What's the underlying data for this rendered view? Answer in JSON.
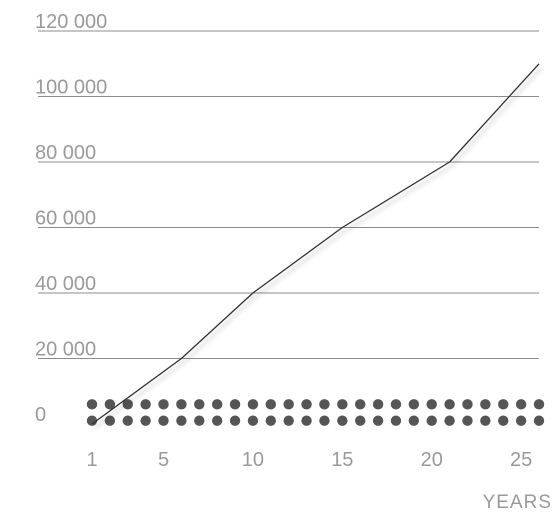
{
  "chart_data": {
    "type": "line",
    "xlabel": "YEARS",
    "ylabel": "",
    "xlim": [
      1,
      26
    ],
    "ylim": [
      0,
      120000
    ],
    "grid": true,
    "y_ticks": [
      {
        "value": 0,
        "label": "0"
      },
      {
        "value": 20000,
        "label": "20 000"
      },
      {
        "value": 40000,
        "label": "40 000"
      },
      {
        "value": 60000,
        "label": "60 000"
      },
      {
        "value": 80000,
        "label": "80 000"
      },
      {
        "value": 100000,
        "label": "100 000"
      },
      {
        "value": 120000,
        "label": "120 000"
      }
    ],
    "x_ticks": [
      {
        "value": 1,
        "label": "1"
      },
      {
        "value": 5,
        "label": "5"
      },
      {
        "value": 10,
        "label": "10"
      },
      {
        "value": 15,
        "label": "15"
      },
      {
        "value": 20,
        "label": "20"
      },
      {
        "value": 25,
        "label": "25"
      }
    ],
    "series": [
      {
        "mark": "line",
        "color": "#333333",
        "x": [
          1,
          6,
          10,
          15,
          21,
          26
        ],
        "y": [
          0,
          20000,
          40000,
          60000,
          80000,
          110000
        ]
      },
      {
        "mark": "dots",
        "color": "#555555",
        "x": [
          1,
          2,
          3,
          4,
          5,
          6,
          7,
          8,
          9,
          10,
          11,
          12,
          13,
          14,
          15,
          16,
          17,
          18,
          19,
          20,
          21,
          22,
          23,
          24,
          25,
          26
        ],
        "rows": [
          1000,
          6000
        ]
      }
    ]
  }
}
